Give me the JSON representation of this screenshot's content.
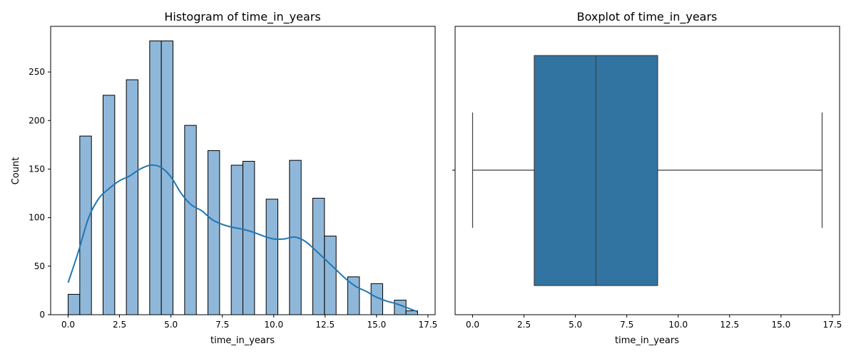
{
  "chart_data": [
    {
      "type": "bar",
      "subtype": "histogram",
      "title": "Histogram of time_in_years",
      "xlabel": "time_in_years",
      "ylabel": "Count",
      "xlim": [
        -0.85,
        17.85
      ],
      "ylim": [
        0,
        297
      ],
      "x_ticks": [
        "0.0",
        "2.5",
        "5.0",
        "7.5",
        "10.0",
        "12.5",
        "15.0",
        "17.5"
      ],
      "y_ticks": [
        "0",
        "50",
        "100",
        "150",
        "200",
        "250"
      ],
      "bin_width": 0.567,
      "bins": [
        {
          "x0": 0.0,
          "count": 21
        },
        {
          "x0": 0.567,
          "count": 184
        },
        {
          "x0": 1.133,
          "count": 0
        },
        {
          "x0": 1.7,
          "count": 226
        },
        {
          "x0": 2.267,
          "count": 0
        },
        {
          "x0": 2.833,
          "count": 242
        },
        {
          "x0": 3.4,
          "count": 0
        },
        {
          "x0": 3.967,
          "count": 282
        },
        {
          "x0": 4.533,
          "count": 282
        },
        {
          "x0": 5.1,
          "count": 0
        },
        {
          "x0": 5.667,
          "count": 195
        },
        {
          "x0": 6.233,
          "count": 0
        },
        {
          "x0": 6.8,
          "count": 169
        },
        {
          "x0": 7.367,
          "count": 0
        },
        {
          "x0": 7.933,
          "count": 154
        },
        {
          "x0": 8.5,
          "count": 158
        },
        {
          "x0": 9.067,
          "count": 0
        },
        {
          "x0": 9.633,
          "count": 119
        },
        {
          "x0": 10.2,
          "count": 0
        },
        {
          "x0": 10.767,
          "count": 159
        },
        {
          "x0": 11.333,
          "count": 0
        },
        {
          "x0": 11.9,
          "count": 120
        },
        {
          "x0": 12.467,
          "count": 81
        },
        {
          "x0": 13.033,
          "count": 0
        },
        {
          "x0": 13.6,
          "count": 39
        },
        {
          "x0": 14.167,
          "count": 0
        },
        {
          "x0": 14.733,
          "count": 32
        },
        {
          "x0": 15.3,
          "count": 0
        },
        {
          "x0": 15.867,
          "count": 15
        },
        {
          "x0": 16.433,
          "count": 4
        }
      ],
      "kde": {
        "x": [
          0,
          0.5,
          1,
          1.5,
          2,
          2.5,
          3,
          3.5,
          4,
          4.5,
          5,
          5.5,
          6,
          6.5,
          7,
          7.5,
          8,
          8.5,
          9,
          9.5,
          10,
          10.5,
          11,
          11.5,
          12,
          12.5,
          13,
          13.5,
          14,
          14.5,
          15,
          15.5,
          16,
          16.5,
          17
        ],
        "y": [
          33,
          65,
          100,
          120,
          130,
          138,
          143,
          150,
          154,
          152,
          142,
          125,
          113,
          107,
          98,
          93,
          90,
          88,
          85,
          81,
          78,
          78,
          80,
          76,
          67,
          57,
          47,
          37,
          29,
          24,
          18,
          14,
          11,
          7,
          3
        ]
      },
      "colors": {
        "bar_fill": "#8fb7d9",
        "bar_edge": "#000000",
        "kde_line": "#1f77b4"
      }
    },
    {
      "type": "boxplot",
      "title": "Boxplot of time_in_years",
      "xlabel": "time_in_years",
      "xlim": [
        -0.85,
        17.85
      ],
      "x_ticks": [
        "0.0",
        "2.5",
        "5.0",
        "7.5",
        "10.0",
        "12.5",
        "15.0",
        "17.5"
      ],
      "stats": {
        "min": 0,
        "q1": 3,
        "median": 6,
        "q3": 9,
        "max": 17
      },
      "colors": {
        "box_fill": "#3274a1",
        "line": "#3f3f3f"
      }
    }
  ]
}
